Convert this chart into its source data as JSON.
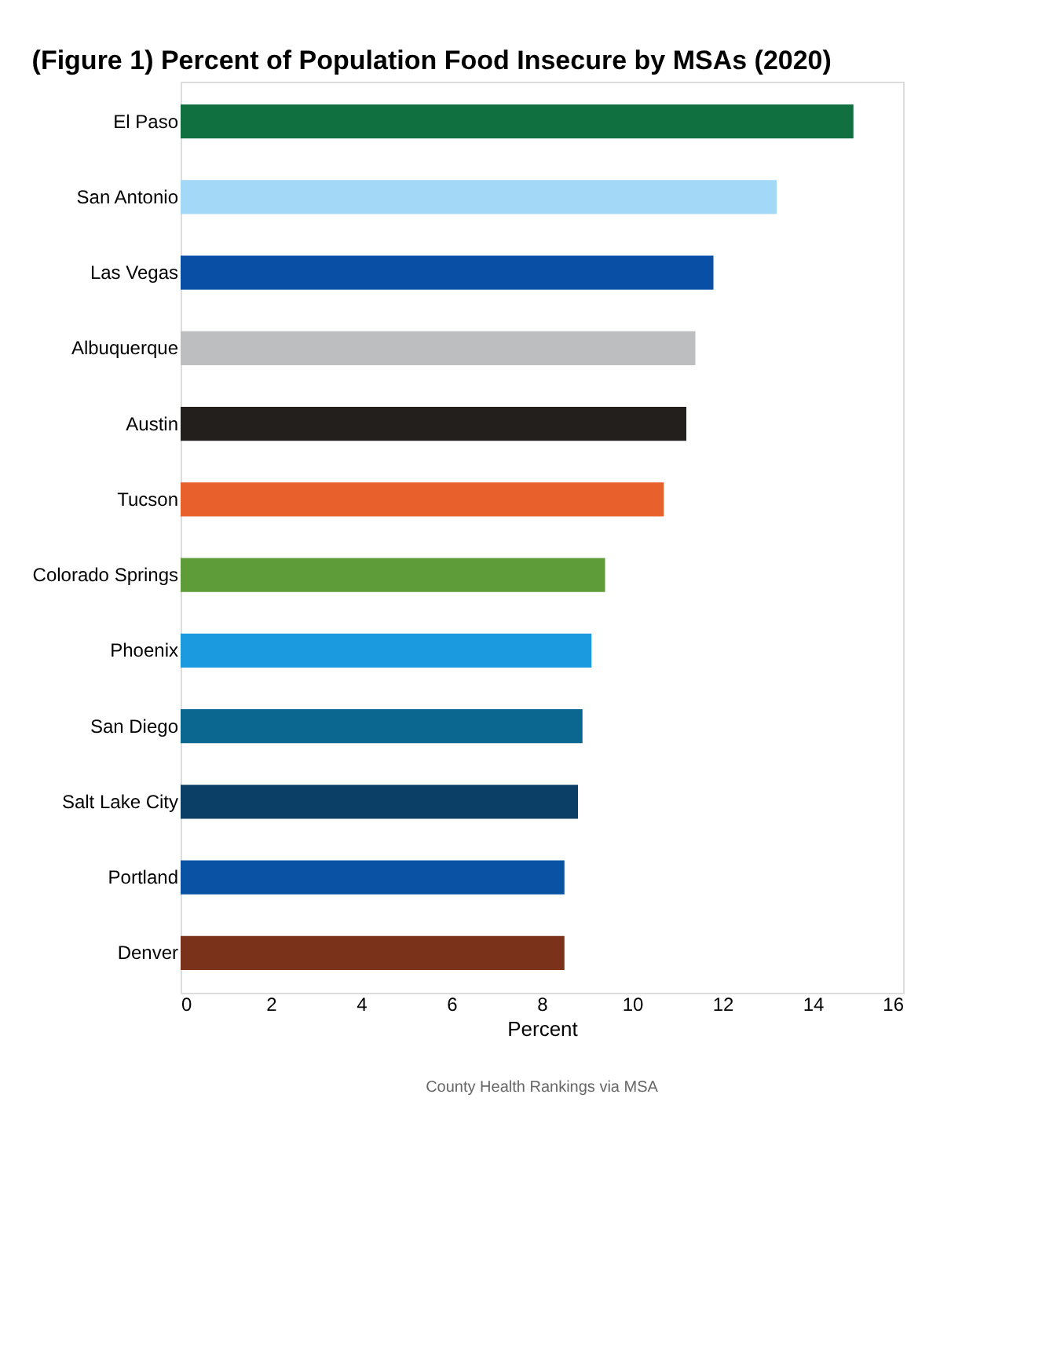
{
  "chart_data": {
    "type": "bar",
    "orientation": "horizontal",
    "title": "(Figure 1) Percent of Population Food Insecure by MSAs (2020)",
    "xlabel": "Percent",
    "categories": [
      "El Paso",
      "San Antonio",
      "Las Vegas",
      "Albuquerque",
      "Austin",
      "Tucson",
      "Colorado Springs",
      "Phoenix",
      "San Diego",
      "Salt Lake City",
      "Portland",
      "Denver"
    ],
    "values": [
      14.9,
      13.2,
      11.8,
      11.4,
      11.2,
      10.7,
      9.4,
      9.1,
      8.9,
      8.8,
      8.5,
      8.5
    ],
    "colors": [
      "#10703f",
      "#a3d8f7",
      "#0a4fa6",
      "#bcbec0",
      "#231f1c",
      "#e8612c",
      "#5e9c3a",
      "#1b9ae0",
      "#0b6690",
      "#0c3f66",
      "#0a52a3",
      "#7a321a"
    ],
    "xlim": [
      0,
      16
    ],
    "xticks": [
      0,
      2,
      4,
      6,
      8,
      10,
      12,
      14,
      16
    ],
    "grid": false,
    "annotations": [
      "County Health Rankings via MSA"
    ]
  }
}
